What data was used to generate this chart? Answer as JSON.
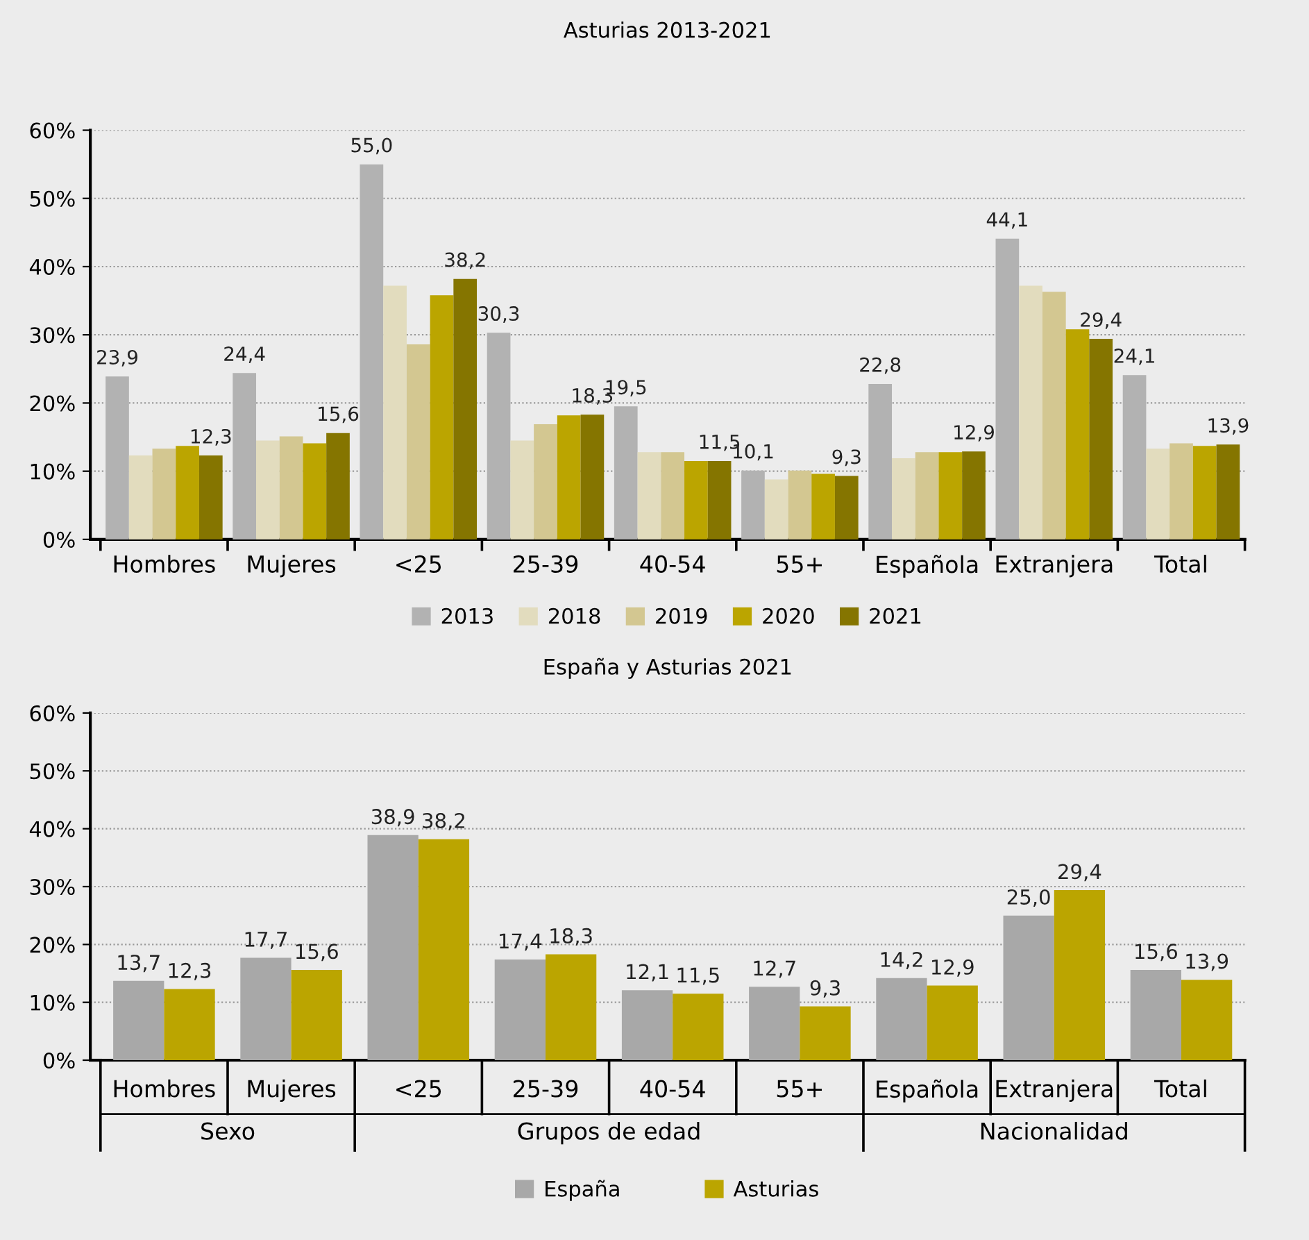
{
  "chart_data": [
    {
      "type": "bar",
      "title": "Asturias 2013-2021",
      "categories": [
        "Hombres",
        "Mujeres",
        "<25",
        "25-39",
        "40-54",
        "55+",
        "Española",
        "Extranjera",
        "Total"
      ],
      "series": [
        {
          "name": "2013",
          "color": "#b2b2b2",
          "values": [
            23.9,
            24.4,
            55.0,
            30.3,
            19.5,
            10.1,
            22.8,
            44.1,
            24.1
          ],
          "value_labels": [
            "23,9",
            "24,4",
            "55,0",
            "30,3",
            "19,5",
            "10,1",
            "22,8",
            "44,1",
            "24,1"
          ]
        },
        {
          "name": "2018",
          "color": "#e2dcbe",
          "values": [
            12.3,
            14.5,
            37.2,
            14.5,
            12.8,
            8.8,
            11.9,
            37.2,
            13.3
          ]
        },
        {
          "name": "2019",
          "color": "#d3c791",
          "values": [
            13.3,
            15.1,
            28.6,
            16.9,
            12.8,
            10.1,
            12.8,
            36.3,
            14.1
          ]
        },
        {
          "name": "2020",
          "color": "#bba500",
          "values": [
            13.7,
            14.1,
            35.8,
            18.2,
            11.5,
            9.6,
            12.8,
            30.8,
            13.7
          ]
        },
        {
          "name": "2021",
          "color": "#857500",
          "values": [
            12.3,
            15.6,
            38.2,
            18.3,
            11.5,
            9.3,
            12.9,
            29.4,
            13.9
          ],
          "value_labels": [
            "12,3",
            "15,6",
            "38,2",
            "18,3",
            "11,5",
            "9,3",
            "12,9",
            "29,4",
            "13,9"
          ]
        }
      ],
      "ylim": [
        0,
        60
      ],
      "yticks": [
        {
          "value": 0,
          "label": "0%"
        },
        {
          "value": 10,
          "label": "10%"
        },
        {
          "value": 20,
          "label": "20%"
        },
        {
          "value": 30,
          "label": "30%"
        },
        {
          "value": 40,
          "label": "40%"
        },
        {
          "value": 50,
          "label": "50%"
        },
        {
          "value": 60,
          "label": "60%"
        }
      ],
      "grid": "y",
      "legend": "bottom"
    },
    {
      "type": "bar",
      "title": "España y Asturias 2021",
      "categories": [
        "Hombres",
        "Mujeres",
        "<25",
        "25-39",
        "40-54",
        "55+",
        "Española",
        "Extranjera",
        "Total"
      ],
      "series": [
        {
          "name": "España",
          "color": "#a8a8a8",
          "values": [
            13.7,
            17.7,
            38.9,
            17.4,
            12.1,
            12.7,
            14.2,
            25.0,
            15.6
          ],
          "value_labels": [
            "13,7",
            "17,7",
            "38,9",
            "17,4",
            "12,1",
            "12,7",
            "14,2",
            "25,0",
            "15,6"
          ]
        },
        {
          "name": "Asturias",
          "color": "#bba500",
          "values": [
            12.3,
            15.6,
            38.2,
            18.3,
            11.5,
            9.3,
            12.9,
            29.4,
            13.9
          ],
          "value_labels": [
            "12,3",
            "15,6",
            "38,2",
            "18,3",
            "11,5",
            "9,3",
            "12,9",
            "29,4",
            "13,9"
          ]
        }
      ],
      "ylim": [
        0,
        60
      ],
      "yticks": [
        {
          "value": 0,
          "label": "0%"
        },
        {
          "value": 10,
          "label": "10%"
        },
        {
          "value": 20,
          "label": "20%"
        },
        {
          "value": 30,
          "label": "30%"
        },
        {
          "value": 40,
          "label": "40%"
        },
        {
          "value": 50,
          "label": "50%"
        },
        {
          "value": 60,
          "label": "60%"
        }
      ],
      "annotations": [
        "Sexo",
        "Grupos de edad",
        "Nacionalidad"
      ],
      "grid": "y",
      "legend": "bottom"
    }
  ]
}
